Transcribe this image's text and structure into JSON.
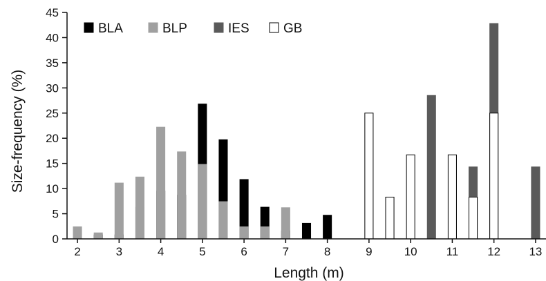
{
  "chart_data": {
    "type": "bar",
    "xlabel": "Length (m)",
    "ylabel": "Size-frequency (%)",
    "xlim": [
      1.75,
      13.25
    ],
    "ylim": [
      0,
      45
    ],
    "x_ticks": [
      2,
      3,
      4,
      5,
      6,
      7,
      8,
      9,
      10,
      11,
      12,
      13
    ],
    "y_ticks": [
      0,
      5,
      10,
      15,
      20,
      25,
      30,
      35,
      40,
      45
    ],
    "grid": false,
    "legend_position": "top-left",
    "bar_width": 0.2,
    "series": [
      {
        "name": "BLA",
        "color": "#000000",
        "stroke": "#000000",
        "x": [
          2.5,
          3.0,
          3.5,
          4.0,
          4.5,
          5.0,
          5.5,
          6.0,
          6.5,
          7.0,
          7.5,
          8.0
        ],
        "values": [
          0.8,
          0.8,
          6.3,
          9.5,
          8.7,
          26.8,
          19.7,
          11.8,
          6.3,
          1.6,
          3.1,
          4.7
        ]
      },
      {
        "name": "BLP",
        "color": "#a0a0a0",
        "stroke": "#a0a0a0",
        "x": [
          2.0,
          2.5,
          3.0,
          3.5,
          4.0,
          4.5,
          5.0,
          5.5,
          6.0,
          6.5,
          7.0
        ],
        "values": [
          2.4,
          1.2,
          11.1,
          12.3,
          22.2,
          17.3,
          14.8,
          7.4,
          2.4,
          2.4,
          6.2
        ]
      },
      {
        "name": "IES",
        "color": "#5a5a5a",
        "stroke": "#5a5a5a",
        "x": [
          10.5,
          11.5,
          12.0,
          13.0
        ],
        "values": [
          28.5,
          14.3,
          42.8,
          14.3
        ]
      },
      {
        "name": "GB",
        "color": "#ffffff",
        "stroke": "#000000",
        "x": [
          9.0,
          9.5,
          10.0,
          11.0,
          11.5,
          12.0
        ],
        "values": [
          25.0,
          8.3,
          16.7,
          16.7,
          8.3,
          25.0
        ]
      }
    ]
  }
}
